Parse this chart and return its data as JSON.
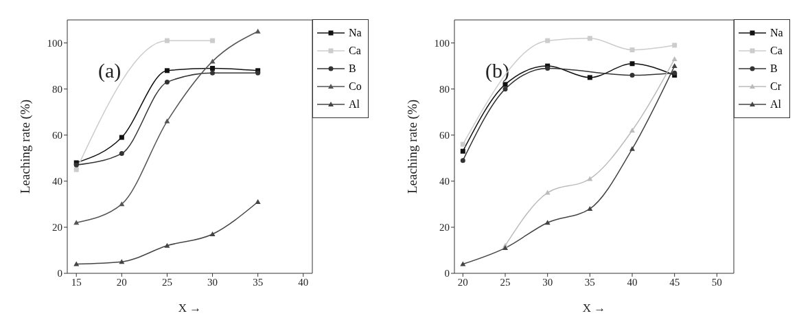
{
  "chart_data": [
    {
      "type": "line",
      "title": "(a)",
      "xlabel": "X →",
      "ylabel": "Leaching rate (%)",
      "x": [
        15,
        20,
        25,
        30,
        35
      ],
      "xlim": [
        14,
        41
      ],
      "xticks": [
        15,
        20,
        25,
        30,
        35,
        40
      ],
      "ylim": [
        0,
        110
      ],
      "yticks": [
        0,
        20,
        40,
        60,
        80,
        100
      ],
      "grid": false,
      "legend": "top right",
      "series": [
        {
          "name": "Na",
          "color": "#111111",
          "marker": "square",
          "values": [
            48,
            59,
            88,
            89,
            88
          ]
        },
        {
          "name": "Ca",
          "color": "#cccccc",
          "marker": "square",
          "values": [
            45,
            null,
            101,
            101,
            null
          ]
        },
        {
          "name": "B",
          "color": "#333333",
          "marker": "circle",
          "values": [
            47,
            52,
            83,
            87,
            87
          ]
        },
        {
          "name": "Co",
          "color": "#555555",
          "marker": "triangle",
          "values": [
            22,
            30,
            66,
            92,
            105
          ]
        },
        {
          "name": "Al",
          "color": "#444444",
          "marker": "triangle",
          "values": [
            4,
            5,
            12,
            17,
            31
          ]
        }
      ]
    },
    {
      "type": "line",
      "title": "(b)",
      "xlabel": "X →",
      "ylabel": "Leaching rate (%)",
      "x": [
        20,
        25,
        30,
        35,
        40,
        45
      ],
      "xlim": [
        19,
        52
      ],
      "xticks": [
        20,
        25,
        30,
        35,
        40,
        45,
        50
      ],
      "ylim": [
        0,
        110
      ],
      "yticks": [
        0,
        20,
        40,
        60,
        80,
        100
      ],
      "grid": false,
      "legend": "top right",
      "series": [
        {
          "name": "Na",
          "color": "#111111",
          "marker": "square",
          "values": [
            53,
            82,
            90,
            85,
            91,
            86
          ]
        },
        {
          "name": "Ca",
          "color": "#cccccc",
          "marker": "square",
          "values": [
            56,
            null,
            101,
            102,
            97,
            99
          ]
        },
        {
          "name": "B",
          "color": "#333333",
          "marker": "circle",
          "values": [
            49,
            80,
            89,
            null,
            86,
            87
          ]
        },
        {
          "name": "Cr",
          "color": "#bbbbbb",
          "marker": "triangle",
          "values": [
            null,
            12,
            35,
            41,
            62,
            93
          ]
        },
        {
          "name": "Al",
          "color": "#444444",
          "marker": "triangle",
          "values": [
            4,
            11,
            22,
            28,
            54,
            90
          ]
        }
      ]
    }
  ]
}
